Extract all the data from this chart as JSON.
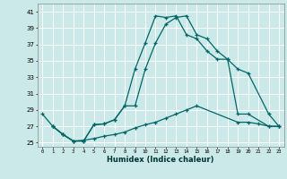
{
  "xlabel": "Humidex (Indice chaleur)",
  "bg_color": "#cce9e9",
  "grid_color": "#ffffff",
  "line_color": "#006666",
  "ylim": [
    24.5,
    42.0
  ],
  "xlim": [
    -0.5,
    23.5
  ],
  "yticks": [
    25,
    27,
    29,
    31,
    33,
    35,
    37,
    39,
    41
  ],
  "xticks": [
    0,
    1,
    2,
    3,
    4,
    5,
    6,
    7,
    8,
    9,
    10,
    11,
    12,
    13,
    14,
    15,
    16,
    17,
    18,
    19,
    20,
    21,
    22,
    23
  ],
  "line1_x": [
    0,
    1,
    2,
    3,
    4,
    5,
    6,
    7,
    8,
    9,
    10,
    11,
    12,
    13,
    14,
    15,
    16,
    17,
    18,
    19,
    20,
    22,
    23
  ],
  "line1_y": [
    28.5,
    27.0,
    26.0,
    25.2,
    25.2,
    27.2,
    27.3,
    27.8,
    29.5,
    34.0,
    37.2,
    40.5,
    40.3,
    40.5,
    38.2,
    37.7,
    36.2,
    35.2,
    35.2,
    28.5,
    28.5,
    27.0,
    27.0
  ],
  "line2_x": [
    1,
    2,
    3,
    4,
    5,
    6,
    7,
    8,
    9,
    10,
    11,
    12,
    13,
    14,
    15,
    16,
    17,
    18,
    19,
    20,
    22,
    23
  ],
  "line2_y": [
    27.0,
    26.0,
    25.2,
    25.2,
    27.2,
    27.3,
    27.8,
    29.5,
    29.5,
    34.0,
    37.2,
    39.5,
    40.3,
    40.5,
    38.2,
    37.7,
    36.2,
    35.2,
    34.0,
    33.5,
    28.5,
    27.0
  ],
  "line3_x": [
    1,
    2,
    3,
    4,
    5,
    6,
    7,
    8,
    9,
    10,
    11,
    12,
    13,
    14,
    15,
    19,
    20,
    21,
    22,
    23
  ],
  "line3_y": [
    27.0,
    26.0,
    25.2,
    25.3,
    25.5,
    25.8,
    26.0,
    26.3,
    26.8,
    27.2,
    27.5,
    28.0,
    28.5,
    29.0,
    29.5,
    27.5,
    27.5,
    27.3,
    27.0,
    27.0
  ]
}
